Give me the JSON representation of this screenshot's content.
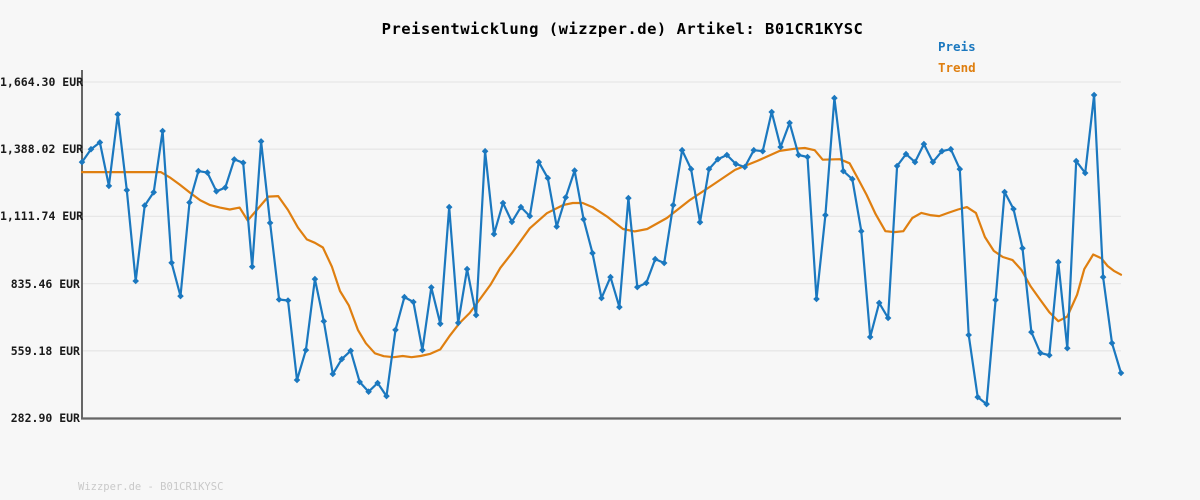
{
  "title": "Preisentwicklung (wizzper.de) Artikel: B01CR1KYSC",
  "legend": {
    "preis": "Preis",
    "trend": "Trend"
  },
  "footer": {
    "watermark": "Wizzper.de - B01CR1KYSC"
  },
  "colors": {
    "background": "#f7f7f7",
    "preis_line": "#1b78bf",
    "trend_line": "#df7f10",
    "gridline": "#e7e7e7",
    "axis": "#666666",
    "tick_text": "#1a1a1a",
    "watermark_text": "#c9c9c9"
  },
  "chart_data": {
    "type": "line",
    "title": "Preisentwicklung (wizzper.de) Artikel: B01CR1KYSC",
    "currency": "EUR",
    "grid": true,
    "legend_position": "upper right",
    "legend": [
      "Preis",
      "Trend"
    ],
    "xlabel": "",
    "ylabel": "",
    "ylim": [
      282.9,
      1664.3
    ],
    "yticks": [
      {
        "label": "1,664.30 EUR",
        "value": 1664.3
      },
      {
        "label": "1,388.02 EUR",
        "value": 1388.02
      },
      {
        "label": "1,111.74 EUR",
        "value": 1111.74
      },
      {
        "label": "835.46 EUR",
        "value": 835.46
      },
      {
        "label": "559.18 EUR",
        "value": 559.18
      },
      {
        "label": "282.90 EUR",
        "value": 282.9
      }
    ],
    "series": [
      {
        "name": "Preis",
        "color": "#1b78bf",
        "marker": "diamond",
        "values": [
          1335,
          1388,
          1416,
          1237,
          1531,
          1220,
          846,
          1156,
          1211,
          1463,
          921,
          784,
          1169,
          1298,
          1292,
          1215,
          1230,
          1346,
          1332,
          905,
          1420,
          1085,
          770,
          766,
          439,
          562,
          854,
          681,
          464,
          525,
          559,
          431,
          391,
          427,
          373,
          645,
          780,
          760,
          562,
          820,
          670,
          1150,
          674,
          895,
          706,
          1380,
          1039,
          1167,
          1089,
          1150,
          1113,
          1335,
          1269,
          1070,
          1190,
          1300,
          1100,
          961,
          776,
          862,
          739,
          1187,
          821,
          838,
          936,
          920,
          1158,
          1384,
          1306,
          1088,
          1306,
          1347,
          1364,
          1327,
          1315,
          1384,
          1380,
          1541,
          1397,
          1496,
          1364,
          1356,
          772,
          1117,
          1598,
          1298,
          1265,
          1051,
          616,
          756,
          694,
          1319,
          1368,
          1335,
          1409,
          1335,
          1380,
          1388,
          1306,
          624,
          369,
          340,
          768,
          1212,
          1142,
          981,
          636,
          550,
          541,
          924,
          570,
          1339,
          1290,
          1611,
          862,
          591,
          468
        ]
      },
      {
        "name": "Trend",
        "color": "#df7f10",
        "marker": "none",
        "points": [
          [
            0,
            1294
          ],
          [
            8.8,
            1294
          ],
          [
            9.8,
            1272
          ],
          [
            10.9,
            1243
          ],
          [
            12.1,
            1208
          ],
          [
            13.2,
            1178
          ],
          [
            14.3,
            1158
          ],
          [
            15.4,
            1148
          ],
          [
            16.5,
            1140
          ],
          [
            17.6,
            1148
          ],
          [
            18.5,
            1095
          ],
          [
            20.8,
            1193
          ],
          [
            21.9,
            1195
          ],
          [
            23,
            1138
          ],
          [
            24.1,
            1066
          ],
          [
            25.1,
            1017
          ],
          [
            26,
            1003
          ],
          [
            26.9,
            984
          ],
          [
            27.9,
            905
          ],
          [
            28.8,
            805
          ],
          [
            29.8,
            745
          ],
          [
            30.8,
            645
          ],
          [
            31.7,
            590
          ],
          [
            32.7,
            549
          ],
          [
            33.7,
            537
          ],
          [
            34.8,
            533
          ],
          [
            35.8,
            538
          ],
          [
            36.8,
            533
          ],
          [
            37.8,
            538
          ],
          [
            38.9,
            547
          ],
          [
            40,
            565
          ],
          [
            41.1,
            623
          ],
          [
            42.2,
            675
          ],
          [
            43.3,
            715
          ],
          [
            44.4,
            770
          ],
          [
            45.6,
            830
          ],
          [
            46.7,
            900
          ],
          [
            48,
            961
          ],
          [
            50,
            1063
          ],
          [
            51.9,
            1125
          ],
          [
            53.7,
            1158
          ],
          [
            54.8,
            1167
          ],
          [
            55.9,
            1167
          ],
          [
            57,
            1150
          ],
          [
            58.7,
            1109
          ],
          [
            60.4,
            1060
          ],
          [
            61.7,
            1050
          ],
          [
            63.1,
            1060
          ],
          [
            65.3,
            1105
          ],
          [
            67.9,
            1180
          ],
          [
            70.4,
            1241
          ],
          [
            72.9,
            1303
          ],
          [
            75.4,
            1340
          ],
          [
            77.9,
            1381
          ],
          [
            79.6,
            1390
          ],
          [
            80.7,
            1393
          ],
          [
            81.8,
            1384
          ],
          [
            82.7,
            1345
          ],
          [
            84.6,
            1347
          ],
          [
            85.7,
            1330
          ],
          [
            86.6,
            1269
          ],
          [
            87.6,
            1200
          ],
          [
            88.6,
            1121
          ],
          [
            89.7,
            1051
          ],
          [
            90.7,
            1047
          ],
          [
            91.7,
            1051
          ],
          [
            92.7,
            1105
          ],
          [
            93.7,
            1126
          ],
          [
            94.7,
            1117
          ],
          [
            95.7,
            1113
          ],
          [
            96.7,
            1126
          ],
          [
            97.8,
            1140
          ],
          [
            98.8,
            1150
          ],
          [
            99.8,
            1126
          ],
          [
            100.8,
            1027
          ],
          [
            101.8,
            970
          ],
          [
            102.8,
            945
          ],
          [
            103.9,
            932
          ],
          [
            104.9,
            891
          ],
          [
            105.9,
            825
          ],
          [
            107,
            768
          ],
          [
            108,
            718
          ],
          [
            109,
            681
          ],
          [
            110,
            700
          ],
          [
            111.1,
            790
          ],
          [
            111.9,
            895
          ],
          [
            112.9,
            955
          ],
          [
            113.8,
            940
          ],
          [
            114.5,
            908
          ],
          [
            115.2,
            888
          ],
          [
            116,
            872
          ]
        ]
      }
    ]
  }
}
